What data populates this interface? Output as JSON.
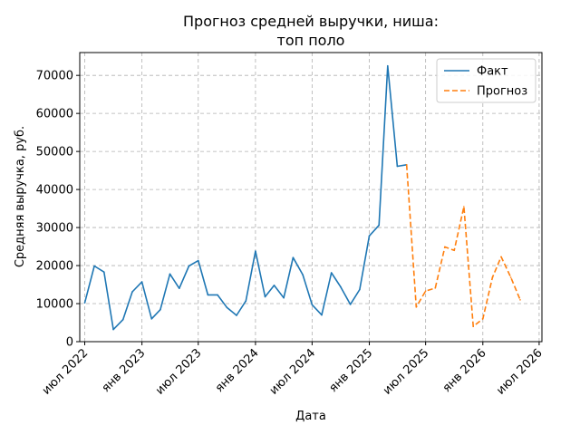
{
  "chart_data": {
    "type": "line",
    "title_lines": [
      "Прогноз средней выручки, ниша:",
      "топ поло"
    ],
    "xlabel": "Дата",
    "ylabel": "Средняя выручка, руб.",
    "ylim": [
      0,
      76000
    ],
    "xlim": [
      "2022-06-15",
      "2026-07-10"
    ],
    "grid": true,
    "legend_position": "top-right",
    "x_ticks": [
      {
        "date": "2022-07-01",
        "label": "июл 2022"
      },
      {
        "date": "2023-01-01",
        "label": "янв 2023"
      },
      {
        "date": "2023-07-01",
        "label": "июл 2023"
      },
      {
        "date": "2024-01-01",
        "label": "янв 2024"
      },
      {
        "date": "2024-07-01",
        "label": "июл 2024"
      },
      {
        "date": "2025-01-01",
        "label": "янв 2025"
      },
      {
        "date": "2025-07-01",
        "label": "июл 2025"
      },
      {
        "date": "2026-01-01",
        "label": "янв 2026"
      },
      {
        "date": "2026-07-01",
        "label": "июл 2026"
      }
    ],
    "y_ticks": [
      {
        "value": 0,
        "label": "0"
      },
      {
        "value": 10000,
        "label": "10000"
      },
      {
        "value": 20000,
        "label": "20000"
      },
      {
        "value": 30000,
        "label": "30000"
      },
      {
        "value": 40000,
        "label": "40000"
      },
      {
        "value": 50000,
        "label": "50000"
      },
      {
        "value": 60000,
        "label": "60000"
      },
      {
        "value": 70000,
        "label": "70000"
      }
    ],
    "series": [
      {
        "name": "Факт",
        "color": "#1f77b4",
        "style": "solid",
        "points": [
          [
            "2022-07-01",
            10200
          ],
          [
            "2022-08-01",
            19900
          ],
          [
            "2022-09-01",
            18300
          ],
          [
            "2022-10-01",
            3200
          ],
          [
            "2022-11-01",
            5800
          ],
          [
            "2022-12-01",
            13100
          ],
          [
            "2023-01-01",
            15700
          ],
          [
            "2023-02-01",
            6000
          ],
          [
            "2023-03-01",
            8400
          ],
          [
            "2023-04-01",
            17800
          ],
          [
            "2023-05-01",
            14000
          ],
          [
            "2023-06-01",
            19900
          ],
          [
            "2023-07-01",
            21300
          ],
          [
            "2023-08-01",
            12300
          ],
          [
            "2023-09-01",
            12300
          ],
          [
            "2023-10-01",
            9000
          ],
          [
            "2023-11-01",
            6900
          ],
          [
            "2023-12-01",
            10700
          ],
          [
            "2024-01-01",
            23800
          ],
          [
            "2024-02-01",
            11800
          ],
          [
            "2024-03-01",
            14800
          ],
          [
            "2024-04-01",
            11500
          ],
          [
            "2024-05-01",
            22100
          ],
          [
            "2024-06-01",
            17600
          ],
          [
            "2024-07-01",
            9700
          ],
          [
            "2024-08-01",
            7000
          ],
          [
            "2024-09-01",
            18100
          ],
          [
            "2024-10-01",
            14400
          ],
          [
            "2024-11-01",
            9800
          ],
          [
            "2024-12-01",
            13700
          ],
          [
            "2025-01-01",
            27800
          ],
          [
            "2025-02-01",
            30600
          ],
          [
            "2025-03-01",
            72500
          ],
          [
            "2025-04-01",
            46100
          ],
          [
            "2025-05-01",
            46500
          ]
        ]
      },
      {
        "name": "Прогноз",
        "color": "#ff7f0e",
        "style": "dashed",
        "points": [
          [
            "2025-05-01",
            46500
          ],
          [
            "2025-06-01",
            9100
          ],
          [
            "2025-07-01",
            13300
          ],
          [
            "2025-08-01",
            14100
          ],
          [
            "2025-09-01",
            24900
          ],
          [
            "2025-10-01",
            24000
          ],
          [
            "2025-11-01",
            35500
          ],
          [
            "2025-12-01",
            4000
          ],
          [
            "2026-01-01",
            6000
          ],
          [
            "2026-02-01",
            16900
          ],
          [
            "2026-03-01",
            22300
          ],
          [
            "2026-04-01",
            16900
          ],
          [
            "2026-05-01",
            11000
          ]
        ]
      }
    ]
  }
}
